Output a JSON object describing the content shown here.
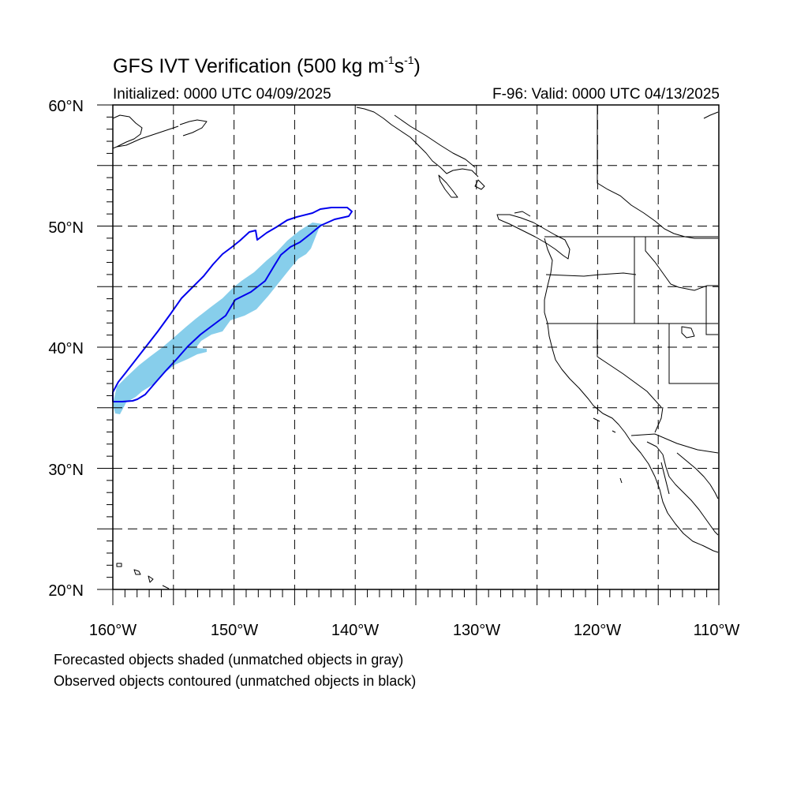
{
  "title": {
    "text": "GFS IVT Verification (500 kg m",
    "exp1": "-1",
    "mid": "s",
    "exp2": "-1",
    "end": ")"
  },
  "initialized": "Initialized: 0000 UTC 04/09/2025",
  "valid": "F-96: Valid: 0000 UTC 04/13/2025",
  "lat_labels": [
    "60°N",
    "50°N",
    "40°N",
    "30°N",
    "20°N"
  ],
  "lon_labels": [
    "160°W",
    "150°W",
    "140°W",
    "130°W",
    "120°W",
    "110°W"
  ],
  "footer": {
    "line1": "Forecasted objects shaded (unmatched objects in gray)",
    "line2": "Observed objects contoured (unmatched objects in black)"
  },
  "colors": {
    "forecast_fill": "#87ceeb",
    "observed_contour": "#0000ee",
    "coastline": "#000000",
    "grid": "#000000"
  }
}
